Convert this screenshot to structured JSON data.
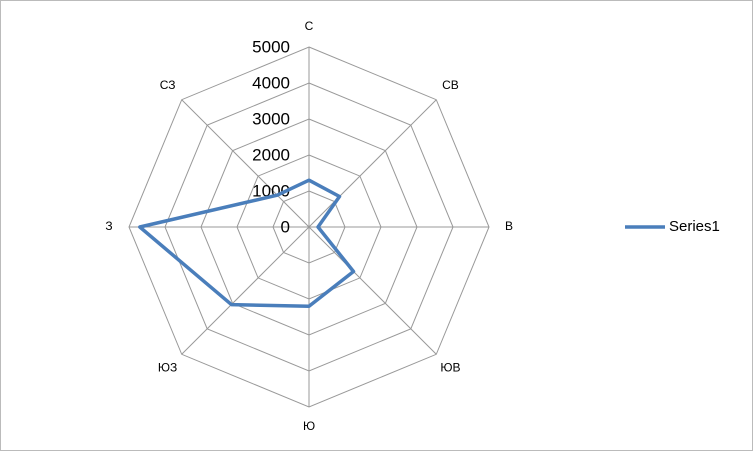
{
  "chart_data": {
    "type": "radar",
    "categories": [
      "С",
      "СВ",
      "В",
      "ЮВ",
      "Ю",
      "ЮЗ",
      "З",
      "СЗ"
    ],
    "series": [
      {
        "name": "Series1",
        "color": "#4a7ebb",
        "values": [
          1300,
          1200,
          250,
          1750,
          2200,
          3050,
          4700,
          1250
        ]
      }
    ],
    "ylim": [
      0,
      5000
    ],
    "yticks": [
      0,
      1000,
      2000,
      3000,
      4000,
      5000
    ],
    "grid": true,
    "legend": "right"
  }
}
